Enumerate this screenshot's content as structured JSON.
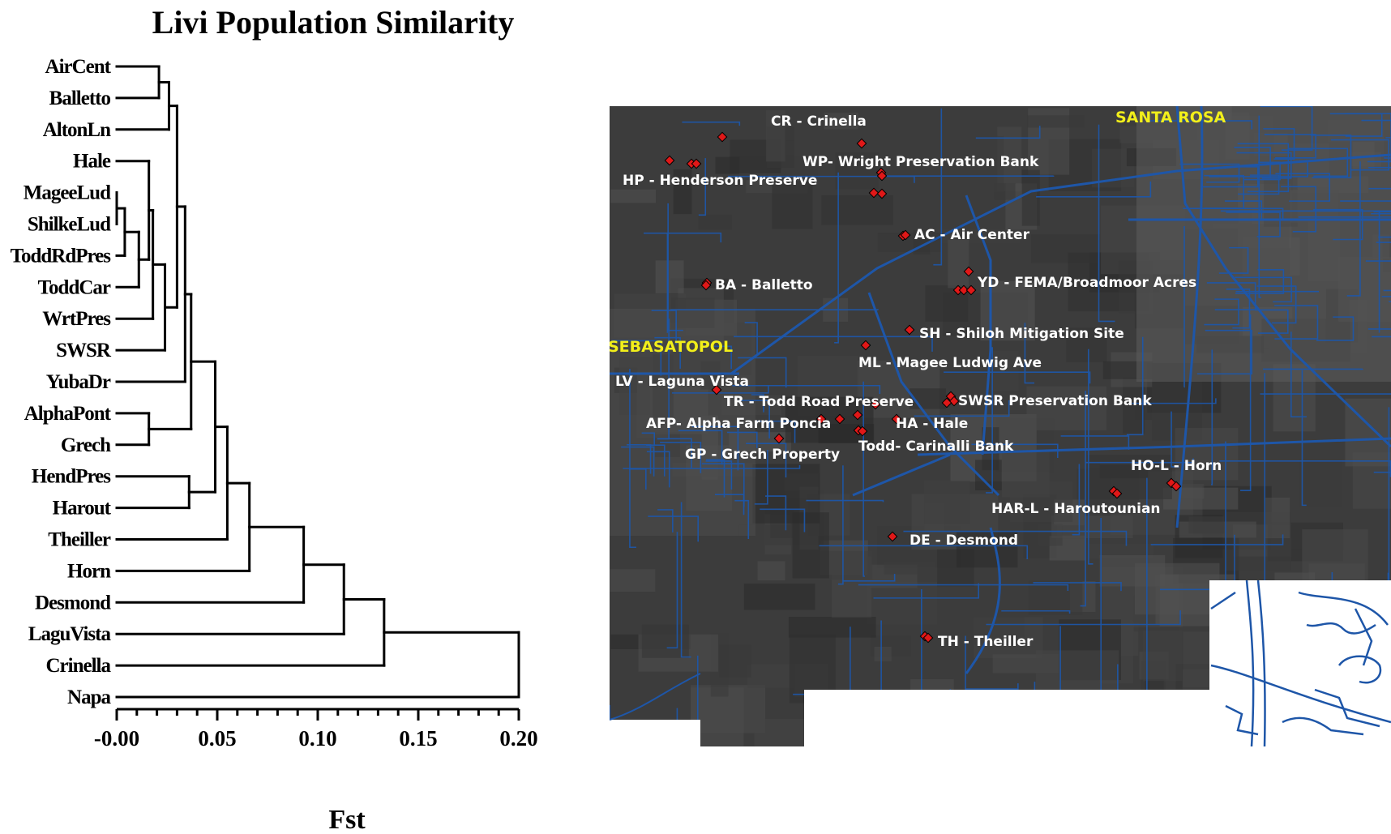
{
  "chart_data": {
    "type": "dendrogram",
    "title": "Livi Population Similarity",
    "xlabel": "Fst",
    "xlim": [
      -0.005,
      0.205
    ],
    "ticks": [
      {
        "value": 0.0,
        "label": "-0.00"
      },
      {
        "value": 0.05,
        "label": "0.05"
      },
      {
        "value": 0.1,
        "label": "0.10"
      },
      {
        "value": 0.15,
        "label": "0.15"
      },
      {
        "value": 0.2,
        "label": "0.20"
      }
    ],
    "leaves": [
      "AirCent",
      "Balletto",
      "AltonLn",
      "Hale",
      "MageeLud",
      "ShilkeLud",
      "ToddRdPres",
      "ToddCar",
      "WrtPres",
      "SWSR",
      "YubaDr",
      "AlphaPont",
      "Grech",
      "HendPres",
      "Harout",
      "Theiller",
      "Horn",
      "Desmond",
      "LaguVista",
      "Crinella",
      "Napa"
    ],
    "merges": [
      {
        "a": "AirCent",
        "b": "Balletto",
        "h": 0.021
      },
      {
        "a": "MageeLud",
        "b": "ShilkeLud",
        "h": 0.0
      },
      {
        "a": "n1",
        "b": "ToddRdPres",
        "h": 0.004
      },
      {
        "a": "n2",
        "b": "ToddCar",
        "h": 0.011
      },
      {
        "a": "Hale",
        "b": "n3",
        "h": 0.016
      },
      {
        "a": "n4",
        "b": "WrtPres",
        "h": 0.018
      },
      {
        "a": "n0",
        "b": "AltonLn",
        "h": 0.026
      },
      {
        "a": "n5",
        "b": "SWSR",
        "h": 0.024
      },
      {
        "a": "n6",
        "b": "n7",
        "h": 0.03
      },
      {
        "a": "n8",
        "b": "YubaDr",
        "h": 0.034
      },
      {
        "a": "AlphaPont",
        "b": "Grech",
        "h": 0.016
      },
      {
        "a": "n9",
        "b": "n10",
        "h": 0.037
      },
      {
        "a": "HendPres",
        "b": "Harout",
        "h": 0.036
      },
      {
        "a": "n11",
        "b": "n12",
        "h": 0.049
      },
      {
        "a": "n13",
        "b": "Theiller",
        "h": 0.055
      },
      {
        "a": "n14",
        "b": "Horn",
        "h": 0.066
      },
      {
        "a": "n15",
        "b": "Desmond",
        "h": 0.093
      },
      {
        "a": "n16",
        "b": "LaguVista",
        "h": 0.113
      },
      {
        "a": "n17",
        "b": "Crinella",
        "h": 0.133
      },
      {
        "a": "n18",
        "b": "Napa",
        "h": 0.2
      }
    ]
  },
  "map": {
    "cities": [
      "SANTA ROSA",
      "SEBASATOPOL"
    ],
    "sites": [
      "CR - Crinella",
      "WP- Wright Preservation Bank",
      "HP - Henderson Preserve",
      "AC - Air Center",
      "BA - Balletto",
      "YD - FEMA/Broadmoor Acres",
      "SH - Shiloh Mitigation Site",
      "ML - Magee Ludwig Ave",
      "LV - Laguna Vista",
      "TR - Todd Road Preserve",
      "SWSR Preservation Bank",
      "AFP- Alpha Farm Poncia",
      "HA - Hale",
      "Todd- Carinalli Bank",
      "GP - Grech Property",
      "HO-L - Horn",
      "HAR-L - Haroutounian",
      "DE - Desmond",
      "TH - Theiller"
    ],
    "colors": {
      "background": "#3c3c3c",
      "roads": "#1e56a8",
      "points": "#e01818",
      "site_labels": "#ffffff",
      "city_labels": "#f2ef1a"
    }
  }
}
